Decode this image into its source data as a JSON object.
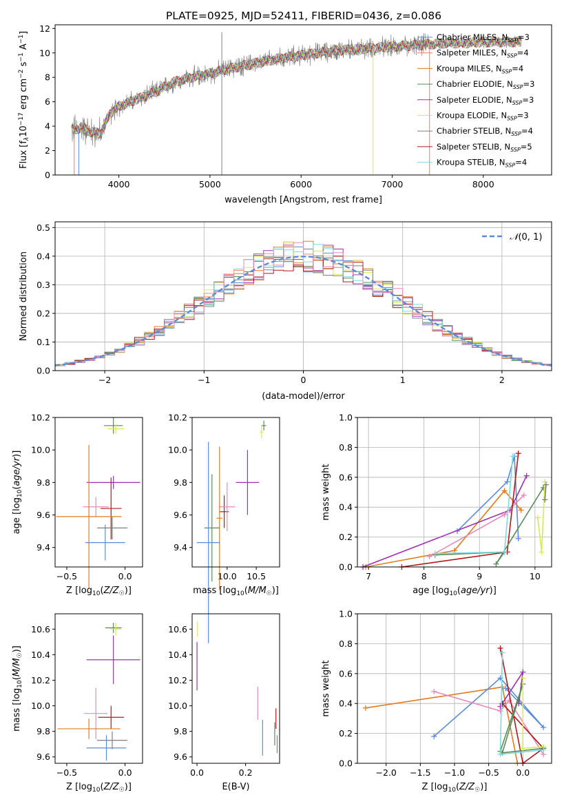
{
  "figure_title": "PLATE=0925, MJD=52411, FIBERID=0436, z=0.086",
  "colors": {
    "Chabrier MILES": "#5b8bd6",
    "Salpeter MILES": "#f37a5a",
    "Kroupa MILES": "#e07b1e",
    "Chabrier ELODIE": "#5a8a5a",
    "Salpeter ELODIE": "#9b30b0",
    "Kroupa ELODIE": "#d8ea50",
    "Chabrier STELIB": "#808080",
    "Salpeter STELIB": "#b01818",
    "Kroupa STELIB": "#7ed8e0",
    "Pink": "#e888b8"
  },
  "chart_data": [
    {
      "id": "spectrum",
      "type": "line",
      "title": "PLATE=0925, MJD=52411, FIBERID=0436, z=0.086",
      "xlabel": "wavelength [Angstrom, rest frame]",
      "ylabel": "Flux [f_λ10^-17 erg cm^-2 s^-1 A^-1]",
      "xlim": [
        3300,
        8750
      ],
      "ylim": [
        0,
        12.3
      ],
      "xticks": [
        4000,
        5000,
        6000,
        7000,
        8000
      ],
      "yticks": [
        0,
        2,
        4,
        6,
        8,
        10,
        12
      ],
      "grid": false,
      "legend_position": "upper-right",
      "legend": [
        {
          "label": "Chabrier MILES, N",
          "sub": "SSP",
          "suffix": "=3",
          "color": "#5b8bd6"
        },
        {
          "label": "Salpeter MILES, N",
          "sub": "SSP",
          "suffix": "=4",
          "color": "#f37a5a"
        },
        {
          "label": "Kroupa MILES, N",
          "sub": "SSP",
          "suffix": "=4",
          "color": "#e07b1e"
        },
        {
          "label": "Chabrier ELODIE, N",
          "sub": "SSP",
          "suffix": "=3",
          "color": "#5a8a5a"
        },
        {
          "label": "Salpeter ELODIE, N",
          "sub": "SSP",
          "suffix": "=3",
          "color": "#9b30b0"
        },
        {
          "label": "Kroupa ELODIE, N",
          "sub": "SSP",
          "suffix": "=3",
          "color": "#d8ea50"
        },
        {
          "label": "Chabrier STELIB, N",
          "sub": "SSP",
          "suffix": "=4",
          "color": "#808080"
        },
        {
          "label": "Salpeter STELIB, N",
          "sub": "SSP",
          "suffix": "=5",
          "color": "#b01818"
        },
        {
          "label": "Kroupa STELIB, N",
          "sub": "SSP",
          "suffix": "=4",
          "color": "#7ed8e0"
        }
      ],
      "continuum": {
        "x": [
          3500,
          3600,
          3700,
          3800,
          3900,
          4000,
          4200,
          4400,
          4600,
          4800,
          5000,
          5200,
          5400,
          5600,
          5800,
          6000,
          6200,
          6400,
          6600,
          6800,
          7000,
          7200,
          7400,
          7600,
          7800,
          8000,
          8200,
          8400
        ],
        "y": [
          3.7,
          3.9,
          3.5,
          3.4,
          5.0,
          5.6,
          6.2,
          6.8,
          7.6,
          8.0,
          8.3,
          8.7,
          9.0,
          9.3,
          9.6,
          9.8,
          10.0,
          10.2,
          10.3,
          10.4,
          10.5,
          10.6,
          10.7,
          10.8,
          10.8,
          10.9,
          10.9,
          10.9
        ]
      },
      "data_noise_amplitude": 1.2,
      "data_color": "#808080",
      "spikes": [
        {
          "x": 5130,
          "y": [
            0,
            11.7
          ],
          "color": "#808080"
        },
        {
          "x": 6790,
          "y": [
            0,
            10.6
          ],
          "color": "#d8ea50"
        },
        {
          "x": 7410,
          "y": [
            0,
            11.0
          ],
          "color": "#f37a5a"
        },
        {
          "x": 3510,
          "y": [
            0,
            4.2
          ],
          "color": "#f37a5a"
        },
        {
          "x": 3560,
          "y": [
            0,
            3.9
          ],
          "color": "#5b8bd6"
        }
      ]
    },
    {
      "id": "residuals",
      "type": "step-histogram",
      "xlabel": "(data-model)/error",
      "ylabel": "Normed distribution",
      "xlim": [
        -2.5,
        2.5
      ],
      "ylim": [
        0,
        0.52
      ],
      "xticks": [
        -2,
        -1,
        0,
        1,
        2
      ],
      "yticks": [
        0.0,
        0.1,
        0.2,
        0.3,
        0.4,
        0.5
      ],
      "grid": true,
      "bin_width": 0.1,
      "gaussian": {
        "label": "N(0,1)",
        "mean": 0,
        "sigma": 1,
        "color": "#5b8bd6"
      },
      "legend_position": "upper-right"
    },
    {
      "id": "age-vs-Z",
      "type": "errorbar",
      "xlabel": "Z [log10(Z/Z☉)]",
      "ylabel": "age  [log10(age/yr)]",
      "xlim": [
        -0.6,
        0.15
      ],
      "ylim": [
        9.28,
        10.2
      ],
      "xticks": [
        -0.5,
        0.0
      ],
      "yticks": [
        9.4,
        9.6,
        9.8,
        10.0,
        10.2
      ],
      "points": [
        {
          "x": -0.1,
          "y": 10.15,
          "xerr": 0.08,
          "yerr": 0.05,
          "color": "#5a8a5a"
        },
        {
          "x": -0.08,
          "y": 10.13,
          "xerr": 0.07,
          "yerr": 0.03,
          "color": "#d8ea50"
        },
        {
          "x": -0.1,
          "y": 9.8,
          "xerr": 0.23,
          "yerr": 0.04,
          "color": "#9b30b0"
        },
        {
          "x": -0.12,
          "y": 9.64,
          "xerr": 0.09,
          "yerr": 0.19,
          "color": "#b01818"
        },
        {
          "x": -0.25,
          "y": 9.65,
          "xerr": 0.11,
          "yerr": 0.06,
          "color": "#e888b8"
        },
        {
          "x": -0.31,
          "y": 9.59,
          "xerr": 0.28,
          "yerr": 0.44,
          "color": "#e07b1e"
        },
        {
          "x": -0.11,
          "y": 9.52,
          "xerr": 0.13,
          "yerr": 0.07,
          "color": "#808080"
        },
        {
          "x": -0.17,
          "y": 9.43,
          "xerr": 0.17,
          "yerr": 0.11,
          "color": "#5b8bd6"
        }
      ]
    },
    {
      "id": "age-vs-mass",
      "type": "errorbar",
      "xlabel": "mass [log10(M/M☉)]",
      "ylabel": "",
      "xlim": [
        9.4,
        10.9
      ],
      "ylim": [
        9.28,
        10.2
      ],
      "xticks": [
        10.0,
        10.5
      ],
      "yticks": [
        9.4,
        9.6,
        9.8,
        10.0,
        10.2
      ],
      "points": [
        {
          "x": 10.63,
          "y": 10.15,
          "xerr": 0.04,
          "yerr": 0.03,
          "color": "#5a8a5a"
        },
        {
          "x": 10.59,
          "y": 10.11,
          "xerr": 0.03,
          "yerr": 0.04,
          "color": "#d8ea50"
        },
        {
          "x": 10.35,
          "y": 9.8,
          "xerr": 0.2,
          "yerr": 0.2,
          "color": "#9b30b0"
        },
        {
          "x": 9.95,
          "y": 9.62,
          "xerr": 0.08,
          "yerr": 0.1,
          "color": "#b01818"
        },
        {
          "x": 10.0,
          "y": 9.65,
          "xerr": 0.14,
          "yerr": 0.15,
          "color": "#e888b8"
        },
        {
          "x": 9.87,
          "y": 9.58,
          "xerr": 0.05,
          "yerr": 0.44,
          "color": "#e07b1e"
        },
        {
          "x": 9.74,
          "y": 9.52,
          "xerr": 0.13,
          "yerr": 0.33,
          "color": "#5a8a5a"
        },
        {
          "x": 9.68,
          "y": 9.43,
          "xerr": 0.2,
          "yerr": 0.62,
          "color": "#5b8bd6"
        }
      ]
    },
    {
      "id": "weight-vs-age",
      "type": "line",
      "xlabel": "age  [log10(age/yr)]",
      "ylabel": "mass weight",
      "xlim": [
        6.8,
        10.3
      ],
      "ylim": [
        0,
        1.0
      ],
      "xticks": [
        7,
        8,
        9,
        10
      ],
      "yticks": [
        0.0,
        0.2,
        0.4,
        0.6,
        0.8,
        1.0
      ],
      "grid": true,
      "series": [
        {
          "color": "#5b8bd6",
          "x": [
            8.6,
            9.5,
            9.63,
            9.7
          ],
          "y": [
            0.24,
            0.57,
            0.74,
            0.19
          ]
        },
        {
          "color": "#e07b1e",
          "x": [
            6.95,
            8.55,
            9.45,
            9.75
          ],
          "y": [
            0.0,
            0.11,
            0.51,
            0.38
          ]
        },
        {
          "color": "#9b30b0",
          "x": [
            6.9,
            9.55,
            9.85
          ],
          "y": [
            0.0,
            0.38,
            0.61
          ]
        },
        {
          "color": "#e888b8",
          "x": [
            8.1,
            9.45,
            9.8
          ],
          "y": [
            0.07,
            0.35,
            0.48
          ]
        },
        {
          "color": "#b01818",
          "x": [
            7.6,
            9.5,
            9.7
          ],
          "y": [
            0.0,
            0.1,
            0.76
          ]
        },
        {
          "color": "#5a8a5a",
          "x": [
            8.2,
            9.45,
            9.3,
            10.15
          ],
          "y": [
            0.08,
            0.1,
            0.02,
            0.53
          ]
        },
        {
          "color": "#d8ea50",
          "x": [
            10.05,
            10.12,
            10.18
          ],
          "y": [
            0.33,
            0.1,
            0.57
          ]
        },
        {
          "color": "#7ed8e0",
          "x": [
            8.2,
            9.45,
            9.6
          ],
          "y": [
            0.09,
            0.1,
            0.74
          ]
        },
        {
          "color": "#808080",
          "x": [
            10.18,
            10.2
          ],
          "y": [
            0.45,
            0.55
          ]
        }
      ]
    },
    {
      "id": "mass-vs-Z",
      "type": "errorbar",
      "xlabel": "Z [log10(Z/Z☉)]",
      "ylabel": "mass [log10(M/M☉)]",
      "xlim": [
        -0.6,
        0.15
      ],
      "ylim": [
        9.55,
        10.72
      ],
      "xticks": [
        -0.5,
        0.0
      ],
      "yticks": [
        9.6,
        9.8,
        10.0,
        10.2,
        10.4,
        10.6
      ],
      "points": [
        {
          "x": -0.1,
          "y": 10.61,
          "xerr": 0.07,
          "yerr": 0.04,
          "color": "#5a8a5a"
        },
        {
          "x": -0.08,
          "y": 10.6,
          "xerr": 0.05,
          "yerr": 0.05,
          "color": "#d8ea50"
        },
        {
          "x": -0.1,
          "y": 10.36,
          "xerr": 0.23,
          "yerr": 0.19,
          "color": "#9b30b0"
        },
        {
          "x": -0.12,
          "y": 9.91,
          "xerr": 0.11,
          "yerr": 0.09,
          "color": "#b01818"
        },
        {
          "x": -0.25,
          "y": 9.94,
          "xerr": 0.1,
          "yerr": 0.2,
          "color": "#e888b8"
        },
        {
          "x": -0.31,
          "y": 9.82,
          "xerr": 0.27,
          "yerr": 0.08,
          "color": "#e07b1e"
        },
        {
          "x": -0.11,
          "y": 9.73,
          "xerr": 0.13,
          "yerr": 0.07,
          "color": "#808080"
        },
        {
          "x": -0.16,
          "y": 9.67,
          "xerr": 0.17,
          "yerr": 0.1,
          "color": "#5b8bd6"
        }
      ]
    },
    {
      "id": "mass-vs-ebv",
      "type": "errorbar",
      "xlabel": "E(B-V)",
      "ylabel": "",
      "xlim": [
        -0.02,
        0.34
      ],
      "ylim": [
        9.55,
        10.72
      ],
      "xticks": [
        0.0,
        0.2
      ],
      "yticks": [
        9.6,
        9.8,
        10.0,
        10.2,
        10.4,
        10.6
      ],
      "points": [
        {
          "x": 0.002,
          "y": 10.6,
          "xerr": 0.0,
          "yerr": 0.06,
          "color": "#d8ea50"
        },
        {
          "x": 0.0,
          "y": 10.31,
          "xerr": 0.0,
          "yerr": 0.19,
          "color": "#9b30b0"
        },
        {
          "x": 0.25,
          "y": 10.02,
          "xerr": 0.0,
          "yerr": 0.13,
          "color": "#e888b8"
        },
        {
          "x": 0.27,
          "y": 9.75,
          "xerr": 0.0,
          "yerr": 0.14,
          "color": "#5b8bd6"
        },
        {
          "x": 0.32,
          "y": 9.78,
          "xerr": 0.0,
          "yerr": 0.09,
          "color": "#5a8a5a"
        },
        {
          "x": 0.325,
          "y": 9.9,
          "xerr": 0.0,
          "yerr": 0.08,
          "color": "#b01818"
        },
        {
          "x": 0.33,
          "y": 9.7,
          "xerr": 0.0,
          "yerr": 0.07,
          "color": "#808080"
        }
      ]
    },
    {
      "id": "weight-vs-Z",
      "type": "line",
      "xlabel": "Z [log10(Z/Z☉)]",
      "ylabel": "mass weight",
      "xlim": [
        -2.42,
        0.42
      ],
      "ylim": [
        0,
        1.0
      ],
      "xticks": [
        -2.0,
        -1.5,
        -1.0,
        -0.5,
        0.0
      ],
      "yticks": [
        0.0,
        0.2,
        0.4,
        0.6,
        0.8,
        1.0
      ],
      "grid": true,
      "series": [
        {
          "color": "#e07b1e",
          "x": [
            -2.3,
            -0.3,
            -0.08
          ],
          "y": [
            0.37,
            0.51,
            0.0
          ]
        },
        {
          "color": "#5b8bd6",
          "x": [
            -1.3,
            -0.33,
            0.3,
            -0.25
          ],
          "y": [
            0.18,
            0.57,
            0.24,
            0.5
          ]
        },
        {
          "color": "#e888b8",
          "x": [
            -1.3,
            -0.33,
            -0.2,
            0.3
          ],
          "y": [
            0.48,
            0.35,
            0.42,
            0.06
          ]
        },
        {
          "color": "#9b30b0",
          "x": [
            -0.33,
            0.0,
            -0.06
          ],
          "y": [
            0.38,
            0.61,
            0.4
          ]
        },
        {
          "color": "#b01818",
          "x": [
            -0.33,
            0.0,
            0.3,
            -0.3
          ],
          "y": [
            0.77,
            0.0,
            0.1,
            0.4
          ]
        },
        {
          "color": "#5a8a5a",
          "x": [
            -0.33,
            0.0,
            -0.3,
            0.3
          ],
          "y": [
            0.08,
            0.53,
            0.07,
            0.1
          ]
        },
        {
          "color": "#d8ea50",
          "x": [
            0.0,
            -0.0,
            0.3
          ],
          "y": [
            0.57,
            0.1,
            0.11
          ]
        },
        {
          "color": "#7ed8e0",
          "x": [
            -0.3,
            -0.33,
            0.3
          ],
          "y": [
            0.74,
            0.06,
            0.09
          ]
        }
      ]
    }
  ]
}
